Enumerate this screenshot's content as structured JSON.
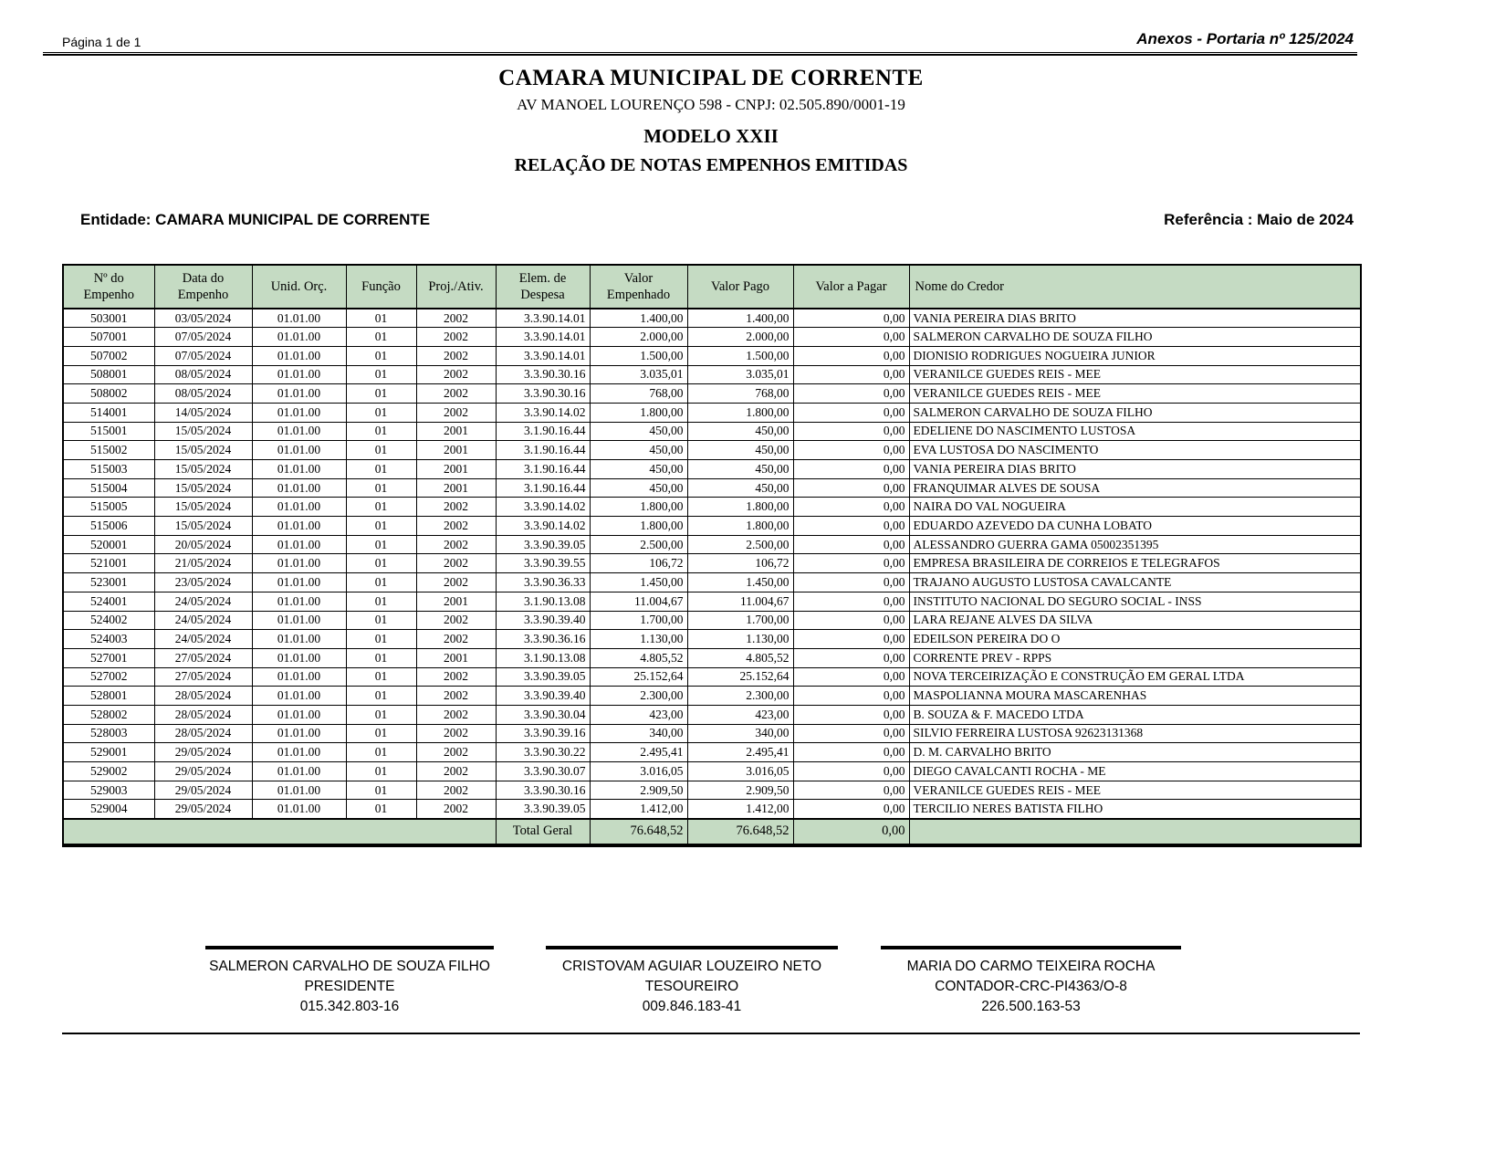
{
  "page": {
    "page_number": "Página 1 de 1",
    "annex_ref": "Anexos - Portaria nº 125/2024"
  },
  "header": {
    "org_name": "CAMARA MUNICIPAL DE CORRENTE",
    "org_address_cnpj": "AV MANOEL LOURENÇO 598  -  CNPJ: 02.505.890/0001-19",
    "model": "MODELO XXII",
    "report_title": "RELAÇÃO DE NOTAS EMPENHOS EMITIDAS",
    "entity_label": "Entidade: CAMARA MUNICIPAL DE CORRENTE",
    "reference_label": "Referência : Maio de 2024"
  },
  "table": {
    "headers": [
      "Nº do Empenho",
      "Data do Empenho",
      "Unid. Orç.",
      "Função",
      "Proj./Ativ.",
      "Elem. de Despesa",
      "Valor Empenhado",
      "Valor Pago",
      "Valor a Pagar",
      "Nome do Credor"
    ],
    "rows": [
      [
        "503001",
        "03/05/2024",
        "01.01.00",
        "01",
        "2002",
        "3.3.90.14.01",
        "1.400,00",
        "1.400,00",
        "0,00",
        "VANIA PEREIRA DIAS BRITO"
      ],
      [
        "507001",
        "07/05/2024",
        "01.01.00",
        "01",
        "2002",
        "3.3.90.14.01",
        "2.000,00",
        "2.000,00",
        "0,00",
        "SALMERON CARVALHO DE SOUZA FILHO"
      ],
      [
        "507002",
        "07/05/2024",
        "01.01.00",
        "01",
        "2002",
        "3.3.90.14.01",
        "1.500,00",
        "1.500,00",
        "0,00",
        "DIONISIO RODRIGUES NOGUEIRA JUNIOR"
      ],
      [
        "508001",
        "08/05/2024",
        "01.01.00",
        "01",
        "2002",
        "3.3.90.30.16",
        "3.035,01",
        "3.035,01",
        "0,00",
        "VERANILCE GUEDES REIS - MEE"
      ],
      [
        "508002",
        "08/05/2024",
        "01.01.00",
        "01",
        "2002",
        "3.3.90.30.16",
        "768,00",
        "768,00",
        "0,00",
        "VERANILCE GUEDES REIS - MEE"
      ],
      [
        "514001",
        "14/05/2024",
        "01.01.00",
        "01",
        "2002",
        "3.3.90.14.02",
        "1.800,00",
        "1.800,00",
        "0,00",
        "SALMERON CARVALHO DE SOUZA FILHO"
      ],
      [
        "515001",
        "15/05/2024",
        "01.01.00",
        "01",
        "2001",
        "3.1.90.16.44",
        "450,00",
        "450,00",
        "0,00",
        "EDELIENE DO NASCIMENTO LUSTOSA"
      ],
      [
        "515002",
        "15/05/2024",
        "01.01.00",
        "01",
        "2001",
        "3.1.90.16.44",
        "450,00",
        "450,00",
        "0,00",
        "EVA LUSTOSA DO NASCIMENTO"
      ],
      [
        "515003",
        "15/05/2024",
        "01.01.00",
        "01",
        "2001",
        "3.1.90.16.44",
        "450,00",
        "450,00",
        "0,00",
        "VANIA PEREIRA DIAS BRITO"
      ],
      [
        "515004",
        "15/05/2024",
        "01.01.00",
        "01",
        "2001",
        "3.1.90.16.44",
        "450,00",
        "450,00",
        "0,00",
        "FRANQUIMAR ALVES DE SOUSA"
      ],
      [
        "515005",
        "15/05/2024",
        "01.01.00",
        "01",
        "2002",
        "3.3.90.14.02",
        "1.800,00",
        "1.800,00",
        "0,00",
        "NAIRA DO VAL NOGUEIRA"
      ],
      [
        "515006",
        "15/05/2024",
        "01.01.00",
        "01",
        "2002",
        "3.3.90.14.02",
        "1.800,00",
        "1.800,00",
        "0,00",
        "EDUARDO AZEVEDO DA CUNHA LOBATO"
      ],
      [
        "520001",
        "20/05/2024",
        "01.01.00",
        "01",
        "2002",
        "3.3.90.39.05",
        "2.500,00",
        "2.500,00",
        "0,00",
        "ALESSANDRO GUERRA GAMA 05002351395"
      ],
      [
        "521001",
        "21/05/2024",
        "01.01.00",
        "01",
        "2002",
        "3.3.90.39.55",
        "106,72",
        "106,72",
        "0,00",
        "EMPRESA BRASILEIRA DE CORREIOS E TELEGRAFOS"
      ],
      [
        "523001",
        "23/05/2024",
        "01.01.00",
        "01",
        "2002",
        "3.3.90.36.33",
        "1.450,00",
        "1.450,00",
        "0,00",
        "TRAJANO AUGUSTO LUSTOSA CAVALCANTE"
      ],
      [
        "524001",
        "24/05/2024",
        "01.01.00",
        "01",
        "2001",
        "3.1.90.13.08",
        "11.004,67",
        "11.004,67",
        "0,00",
        "INSTITUTO NACIONAL DO SEGURO SOCIAL - INSS"
      ],
      [
        "524002",
        "24/05/2024",
        "01.01.00",
        "01",
        "2002",
        "3.3.90.39.40",
        "1.700,00",
        "1.700,00",
        "0,00",
        "LARA REJANE ALVES DA SILVA"
      ],
      [
        "524003",
        "24/05/2024",
        "01.01.00",
        "01",
        "2002",
        "3.3.90.36.16",
        "1.130,00",
        "1.130,00",
        "0,00",
        "EDEILSON PEREIRA DO O"
      ],
      [
        "527001",
        "27/05/2024",
        "01.01.00",
        "01",
        "2001",
        "3.1.90.13.08",
        "4.805,52",
        "4.805,52",
        "0,00",
        "CORRENTE PREV - RPPS"
      ],
      [
        "527002",
        "27/05/2024",
        "01.01.00",
        "01",
        "2002",
        "3.3.90.39.05",
        "25.152,64",
        "25.152,64",
        "0,00",
        "NOVA TERCEIRIZAÇÃO E CONSTRUÇÃO EM GERAL LTDA"
      ],
      [
        "528001",
        "28/05/2024",
        "01.01.00",
        "01",
        "2002",
        "3.3.90.39.40",
        "2.300,00",
        "2.300,00",
        "0,00",
        "MASPOLIANNA MOURA MASCARENHAS"
      ],
      [
        "528002",
        "28/05/2024",
        "01.01.00",
        "01",
        "2002",
        "3.3.90.30.04",
        "423,00",
        "423,00",
        "0,00",
        "B. SOUZA & F. MACEDO LTDA"
      ],
      [
        "528003",
        "28/05/2024",
        "01.01.00",
        "01",
        "2002",
        "3.3.90.39.16",
        "340,00",
        "340,00",
        "0,00",
        "SILVIO FERREIRA LUSTOSA 92623131368"
      ],
      [
        "529001",
        "29/05/2024",
        "01.01.00",
        "01",
        "2002",
        "3.3.90.30.22",
        "2.495,41",
        "2.495,41",
        "0,00",
        "D. M. CARVALHO BRITO"
      ],
      [
        "529002",
        "29/05/2024",
        "01.01.00",
        "01",
        "2002",
        "3.3.90.30.07",
        "3.016,05",
        "3.016,05",
        "0,00",
        "DIEGO CAVALCANTI ROCHA - ME"
      ],
      [
        "529003",
        "29/05/2024",
        "01.01.00",
        "01",
        "2002",
        "3.3.90.30.16",
        "2.909,50",
        "2.909,50",
        "0,00",
        "VERANILCE GUEDES REIS - MEE"
      ],
      [
        "529004",
        "29/05/2024",
        "01.01.00",
        "01",
        "2002",
        "3.3.90.39.05",
        "1.412,00",
        "1.412,00",
        "0,00",
        "TERCILIO NERES BATISTA FILHO"
      ]
    ],
    "total": {
      "label": "Total Geral",
      "valor_empenhado": "76.648,52",
      "valor_pago": "76.648,52",
      "valor_a_pagar": "0,00"
    }
  },
  "signatures": [
    {
      "name": "SALMERON CARVALHO DE SOUZA FILHO",
      "role": "PRESIDENTE",
      "cpf": "015.342.803-16"
    },
    {
      "name": "CRISTOVAM AGUIAR LOUZEIRO NETO",
      "role": "TESOUREIRO",
      "cpf": "009.846.183-41"
    },
    {
      "name": "MARIA DO CARMO TEIXEIRA ROCHA",
      "role": "CONTADOR-CRC-PI4363/O-8",
      "cpf": "226.500.163-53"
    }
  ],
  "colors": {
    "header_green": "#c5dbc3",
    "border": "#000000"
  }
}
